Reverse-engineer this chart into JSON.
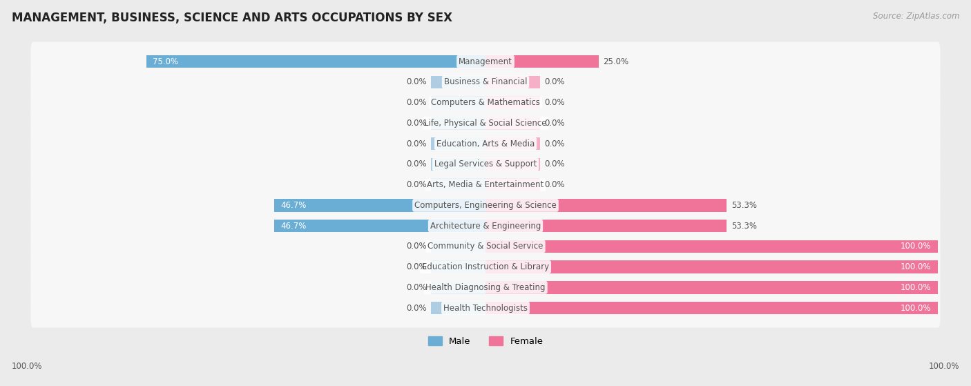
{
  "title": "MANAGEMENT, BUSINESS, SCIENCE AND ARTS OCCUPATIONS BY SEX",
  "source": "Source: ZipAtlas.com",
  "categories": [
    "Management",
    "Business & Financial",
    "Computers & Mathematics",
    "Life, Physical & Social Science",
    "Education, Arts & Media",
    "Legal Services & Support",
    "Arts, Media & Entertainment",
    "Computers, Engineering & Science",
    "Architecture & Engineering",
    "Community & Social Service",
    "Education Instruction & Library",
    "Health Diagnosing & Treating",
    "Health Technologists"
  ],
  "male": [
    75.0,
    0.0,
    0.0,
    0.0,
    0.0,
    0.0,
    0.0,
    46.7,
    46.7,
    0.0,
    0.0,
    0.0,
    0.0
  ],
  "female": [
    25.0,
    0.0,
    0.0,
    0.0,
    0.0,
    0.0,
    0.0,
    53.3,
    53.3,
    100.0,
    100.0,
    100.0,
    100.0
  ],
  "male_color": "#6aaed6",
  "male_color_light": "#aecde3",
  "female_color": "#f0739a",
  "female_color_light": "#f5b0c8",
  "bg_color": "#ebebeb",
  "bar_bg_color": "#f7f7f7",
  "row_border_color": "#dddddd",
  "label_color_dark": "#555555",
  "label_color_white": "#ffffff",
  "title_fontsize": 12,
  "source_fontsize": 8.5,
  "bar_label_fontsize": 8.5,
  "category_fontsize": 8.5,
  "legend_fontsize": 9.5,
  "stub_size": 12
}
